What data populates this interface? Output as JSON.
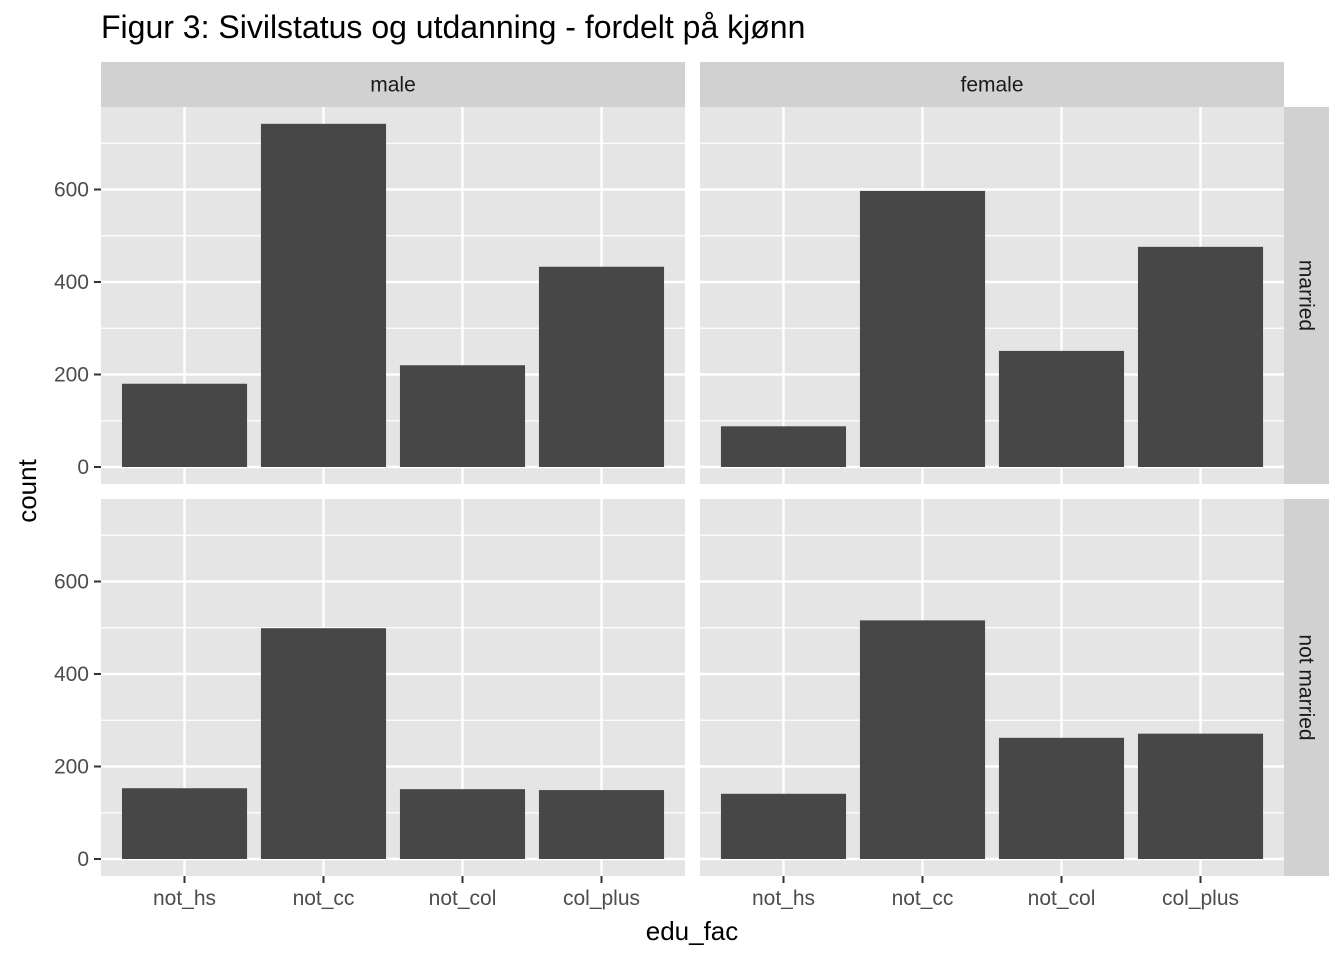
{
  "chart_data": {
    "type": "bar",
    "title": "Figur 3: Sivilstatus og utdanning - fordelt på kjønn",
    "xlabel": "edu_fac",
    "ylabel": "count",
    "categories": [
      "not_hs",
      "not_cc",
      "not_col",
      "col_plus"
    ],
    "ylim": [
      0,
      700
    ],
    "yticks": [
      0,
      200,
      400,
      600
    ],
    "grid": true,
    "facet_columns": [
      "male",
      "female"
    ],
    "facet_rows": [
      "married",
      "not married"
    ],
    "panels": [
      {
        "col": "male",
        "row": "married",
        "values": [
          180,
          742,
          220,
          433
        ]
      },
      {
        "col": "female",
        "row": "married",
        "values": [
          88,
          597,
          251,
          476
        ]
      },
      {
        "col": "male",
        "row": "not married",
        "values": [
          153,
          499,
          151,
          149
        ]
      },
      {
        "col": "female",
        "row": "not married",
        "values": [
          141,
          516,
          262,
          271
        ]
      }
    ],
    "colors": {
      "bar": "#474747",
      "panel_bg": "#e5e5e5",
      "strip_bg": "#d1d1d1",
      "grid": "#ffffff"
    }
  }
}
